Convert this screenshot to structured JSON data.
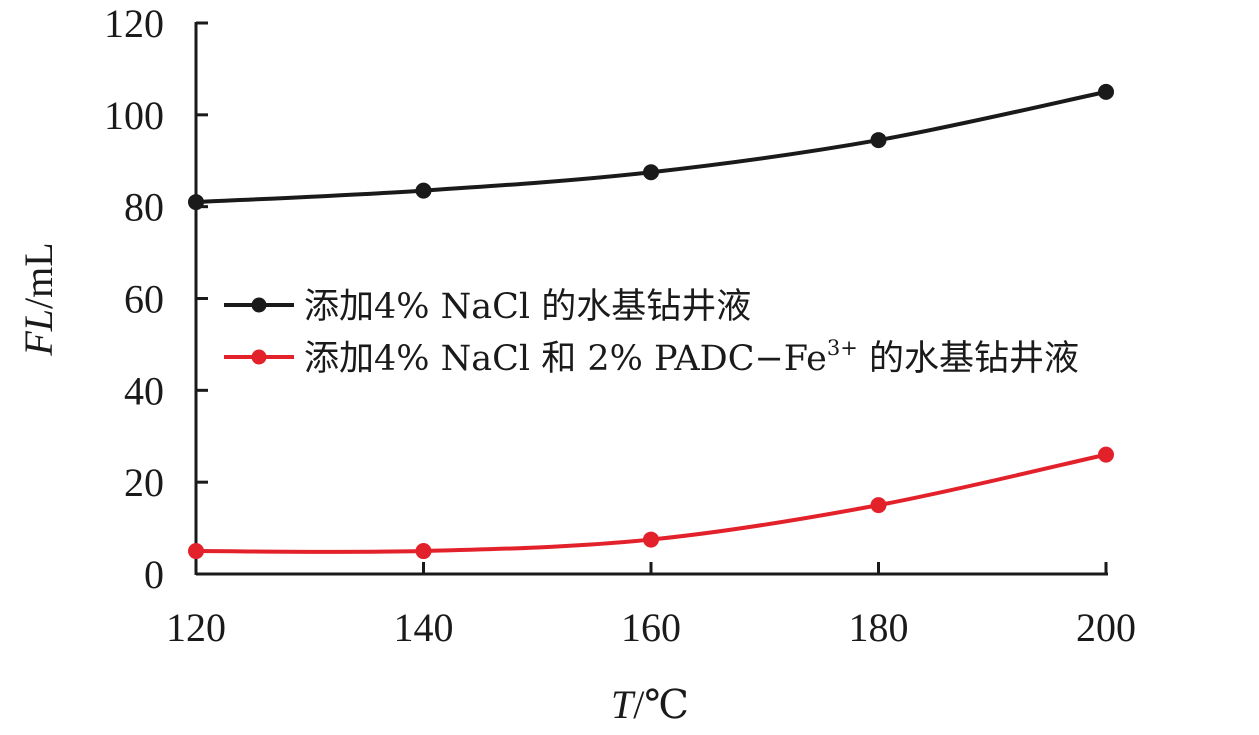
{
  "chart_data": {
    "type": "line",
    "title": "",
    "xlabel": {
      "italic": "T",
      "unit": "/℃"
    },
    "ylabel": {
      "italic": "FL",
      "unit": "/mL"
    },
    "x": [
      120,
      140,
      160,
      180,
      200
    ],
    "xlim": [
      120,
      200
    ],
    "ylim": [
      0,
      120
    ],
    "xticks": [
      "120",
      "140",
      "160",
      "180",
      "200"
    ],
    "yticks": [
      "0",
      "20",
      "40",
      "60",
      "80",
      "100",
      "120"
    ],
    "grid": false,
    "legend_position": "center-left",
    "series": [
      {
        "name": "添加4% NaCl 的水基钻井液",
        "color": "#1a1a1a",
        "values": [
          81,
          83.5,
          87.5,
          94.5,
          105
        ]
      },
      {
        "name_parts": {
          "before": "添加4% NaCl 和 2% PADC−Fe",
          "sup": "3+",
          "after": " 的水基钻井液"
        },
        "color": "#e3212b",
        "values": [
          5,
          5,
          7.5,
          15,
          26
        ]
      }
    ]
  }
}
